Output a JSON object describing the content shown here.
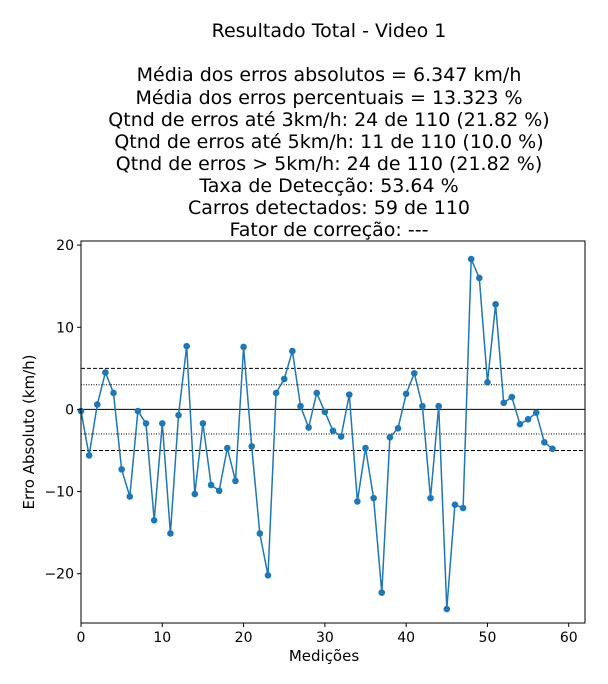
{
  "chart_data": {
    "type": "line",
    "title": "Resultado Total - Video 1",
    "subtitle_lines": [
      "Média dos erros absolutos =  6.347 km/h",
      "Média dos erros percentuais = 13.323 %",
      "Qtnd de erros até 3km/h: 24 de 110 (21.82 %)",
      "Qtnd de erros até 5km/h: 11 de 110 (10.0 %)",
      "Qtnd de erros > 5km/h: 24 de 110 (21.82 %)",
      "Taxa de Detecção: 53.64 %",
      "Carros detectados: 59 de 110",
      "Fator de correção: ---"
    ],
    "xlabel": "Medições",
    "ylabel": "Erro Absoluto (km/h)",
    "xlim": [
      0,
      62
    ],
    "ylim": [
      -26,
      20.5
    ],
    "xticks": [
      0,
      10,
      20,
      30,
      40,
      50,
      60
    ],
    "yticks": [
      -20,
      -10,
      0,
      10,
      20
    ],
    "xtick_labels": [
      "0",
      "10",
      "20",
      "30",
      "40",
      "50",
      "60"
    ],
    "ytick_labels": [
      "−20",
      "−10",
      "0",
      "10",
      "20"
    ],
    "grid": false,
    "reference_lines": [
      {
        "y": 0,
        "style": "solid"
      },
      {
        "y": 5,
        "style": "dashed"
      },
      {
        "y": -5,
        "style": "dashed"
      },
      {
        "y": 3,
        "style": "dotted"
      },
      {
        "y": -3,
        "style": "dotted"
      }
    ],
    "series": [
      {
        "color": "#1f77b4",
        "marker": "circle",
        "x": [
          0,
          1,
          2,
          3,
          4,
          5,
          6,
          7,
          8,
          9,
          10,
          11,
          12,
          13,
          14,
          15,
          16,
          17,
          18,
          19,
          20,
          21,
          22,
          23,
          24,
          25,
          26,
          27,
          28,
          29,
          30,
          31,
          32,
          33,
          34,
          35,
          36,
          37,
          38,
          39,
          40,
          41,
          42,
          43,
          44,
          45,
          46,
          47,
          48,
          49,
          50,
          51,
          52,
          53,
          54,
          55,
          56,
          57,
          58
        ],
        "values": [
          -0.2,
          -5.6,
          0.6,
          4.5,
          2.0,
          -7.3,
          -10.6,
          -0.2,
          -1.7,
          -13.5,
          -1.7,
          -15.1,
          -0.7,
          7.7,
          -10.3,
          -1.7,
          -9.2,
          -9.9,
          -4.7,
          -8.7,
          7.6,
          -4.5,
          -15.1,
          -20.2,
          2.0,
          3.7,
          7.1,
          0.4,
          -2.2,
          2.0,
          -0.3,
          -2.6,
          -3.3,
          1.8,
          -11.2,
          -4.7,
          -10.8,
          -22.3,
          -3.4,
          -2.3,
          1.9,
          4.4,
          0.4,
          -10.8,
          0.4,
          -24.3,
          -11.6,
          -12.0,
          18.3,
          16.0,
          3.3,
          12.8,
          0.8,
          1.5,
          -1.8,
          -1.2,
          -0.4,
          -4.0,
          -4.8
        ]
      }
    ]
  }
}
